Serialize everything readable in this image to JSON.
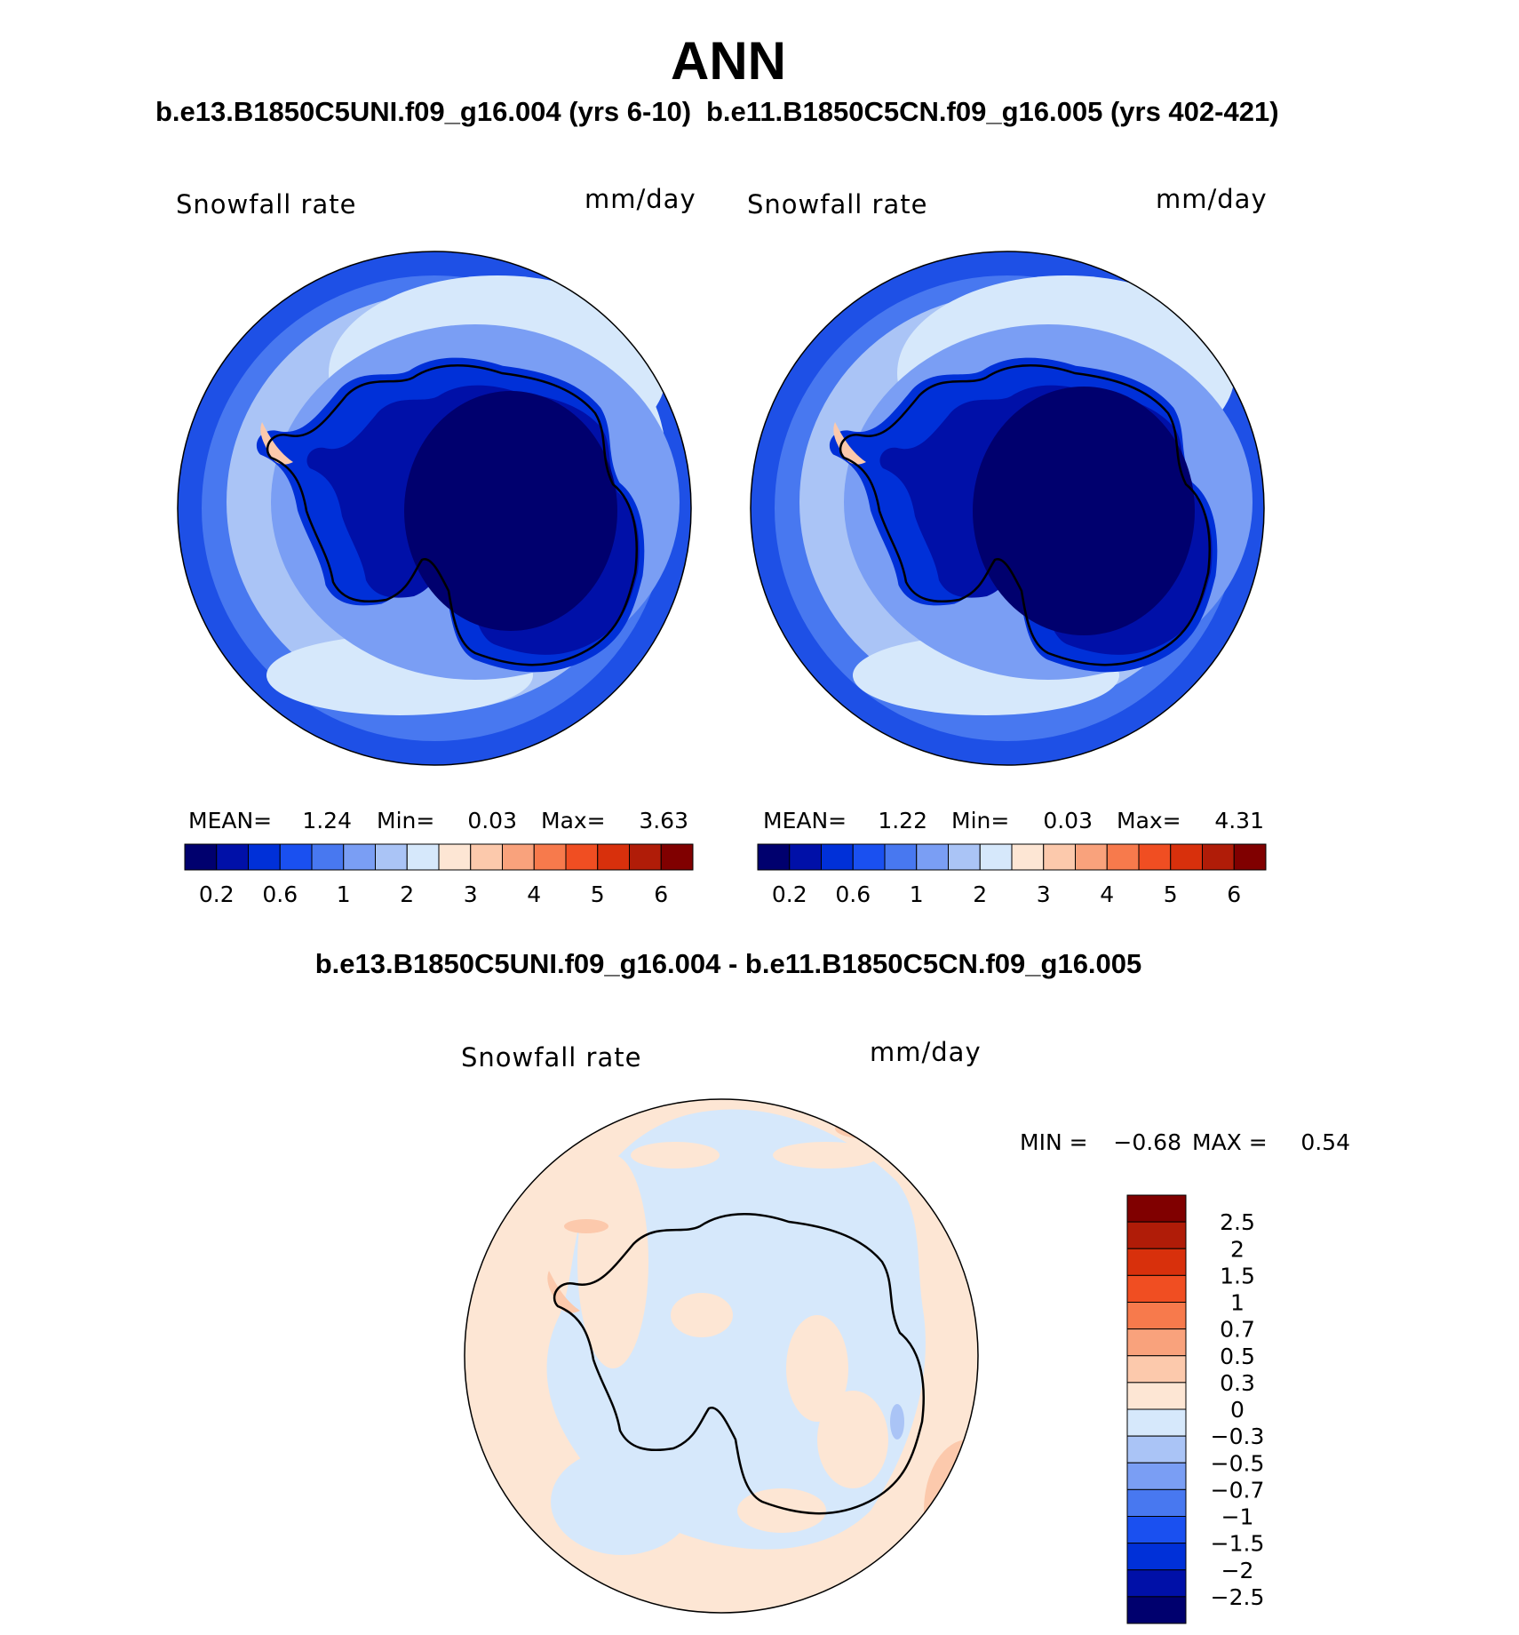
{
  "title": "ANN",
  "panel_top_left": {
    "case": "b.e13.B1850C5UNI.f09_g16.004 (yrs 6-10)",
    "variable": "Snowfall rate",
    "units": "mm/day",
    "stats": {
      "mean_label": "MEAN=",
      "mean": "1.24",
      "min_label": "Min=",
      "min": "0.03",
      "max_label": "Max=",
      "max": "3.63"
    }
  },
  "panel_top_right": {
    "case": "b.e11.B1850C5CN.f09_g16.005 (yrs 402-421)",
    "variable": "Snowfall rate",
    "units": "mm/day",
    "stats": {
      "mean_label": "MEAN=",
      "mean": "1.22",
      "min_label": "Min=",
      "min": "0.03",
      "max_label": "Max=",
      "max": "4.31"
    }
  },
  "panel_diff": {
    "case": "b.e13.B1850C5UNI.f09_g16.004 - b.e11.B1850C5CN.f09_g16.005",
    "variable": "Snowfall rate",
    "units": "mm/day",
    "stats": {
      "min_label": "MIN =",
      "min": "−0.68",
      "max_label": "MAX =",
      "max": "0.54"
    }
  },
  "colorbar_abs": {
    "colors": [
      "#00006e",
      "#0010a8",
      "#0030d8",
      "#1a50f0",
      "#4878f0",
      "#7a9ef4",
      "#aac4f6",
      "#d6e8fb",
      "#fde6d4",
      "#fcc9ac",
      "#f9a27c",
      "#f77a4c",
      "#f04e22",
      "#d8300c",
      "#b01c08",
      "#800000"
    ],
    "labels": [
      "0.2",
      "0.6",
      "1",
      "2",
      "3",
      "4",
      "5",
      "6"
    ]
  },
  "colorbar_diff": {
    "colors": [
      "#800000",
      "#b01c08",
      "#d8300c",
      "#f04e22",
      "#f77a4c",
      "#f9a27c",
      "#fcc9ac",
      "#fde6d4",
      "#d6e8fb",
      "#aac4f6",
      "#7a9ef4",
      "#4878f0",
      "#1a50f0",
      "#0030d8",
      "#0010a8",
      "#00006e"
    ],
    "labels": [
      "2.5",
      "2",
      "1.5",
      "1",
      "0.7",
      "0.5",
      "0.3",
      "0",
      "−0.3",
      "−0.5",
      "−0.7",
      "−1",
      "−1.5",
      "−2",
      "−2.5"
    ]
  },
  "map_colors": {
    "ocean_outer": "#1e50e6",
    "ocean_ring2": "#4878f0",
    "ocean_mid": "#aac4f6",
    "ocean_light": "#d6e8fb",
    "coast_band": "#7a9ef4",
    "interior_1": "#0030d8",
    "interior_2": "#0010a8",
    "interior_3": "#00006e",
    "peninsula_warm": "#fcc9ac",
    "diff_pos": "#fde6d4",
    "diff_pos_strong": "#fcc9ac",
    "diff_neg": "#d6e8fb",
    "diff_neg_strong": "#aac4f6"
  }
}
